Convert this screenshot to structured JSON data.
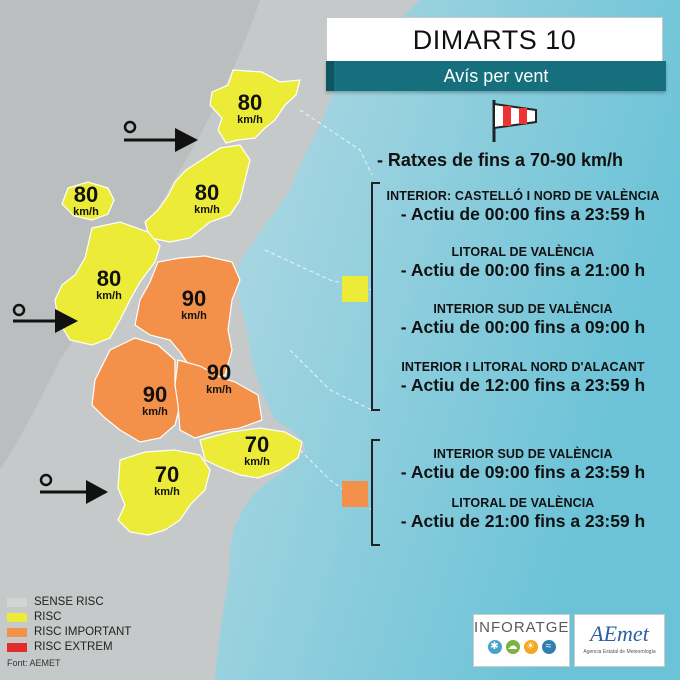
{
  "header": {
    "title": "DIMARTS 10",
    "subtitle": "Avís per vent"
  },
  "gust_line": "- Ratxes de fins a 70-90 km/h",
  "colors": {
    "sense_risc": "#d4d4d4",
    "risc": "#ecec38",
    "risc_important": "#f3904a",
    "risc_extrem": "#e52b2b",
    "banner": "#156f7c"
  },
  "yellow_zones": [
    {
      "name": "INTERIOR: CASTELLÓ I NORD DE VALÈNCIA",
      "time": "- Actiu de 00:00 fins a 23:59 h"
    },
    {
      "name": "LITORAL DE VALÈNCIA",
      "time": "- Actiu de 00:00 fins a 21:00 h"
    },
    {
      "name": "INTERIOR SUD DE VALÈNCIA",
      "time": "- Actiu de 00:00 fins a 09:00 h"
    },
    {
      "name": "INTERIOR I LITORAL NORD D'ALACANT",
      "time": "- Actiu de 12:00 fins a 23:59 h"
    }
  ],
  "orange_zones": [
    {
      "name": "INTERIOR SUD DE VALÈNCIA",
      "time": "- Actiu de 09:00 fins a 23:59 h"
    },
    {
      "name": "LITORAL DE VALÈNCIA",
      "time": "- Actiu de 21:00 fins a 23:59 h"
    }
  ],
  "map_labels": [
    {
      "value": "80",
      "unit": "km/h"
    },
    {
      "value": "80",
      "unit": "km/h"
    },
    {
      "value": "80",
      "unit": "km/h"
    },
    {
      "value": "80",
      "unit": "km/h"
    },
    {
      "value": "90",
      "unit": "km/h"
    },
    {
      "value": "90",
      "unit": "km/h"
    },
    {
      "value": "90",
      "unit": "km/h"
    },
    {
      "value": "70",
      "unit": "km/h"
    },
    {
      "value": "70",
      "unit": "km/h"
    }
  ],
  "legend": [
    {
      "label": "SENSE RISC"
    },
    {
      "label": "RISC"
    },
    {
      "label": "RISC IMPORTANT"
    },
    {
      "label": "RISC EXTREM"
    }
  ],
  "source": "Font: AEMET",
  "logos": {
    "inforatge": "INFORATGE",
    "aemet": "AEmet",
    "aemet_sub": "Agencia Estatal de Meteorología"
  }
}
